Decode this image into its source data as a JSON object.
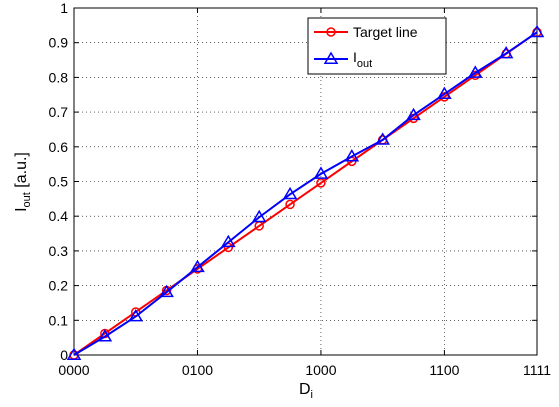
{
  "chart_data": {
    "type": "line",
    "categories": [
      "0000",
      "0001",
      "0010",
      "0011",
      "0100",
      "0101",
      "0110",
      "0111",
      "1000",
      "1001",
      "1010",
      "1011",
      "1100",
      "1101",
      "1110",
      "1111"
    ],
    "tick_labels": [
      "0000",
      "0100",
      "1000",
      "1100",
      "1111"
    ],
    "xlabel": {
      "main": "D",
      "sub": "i"
    },
    "ylabel": {
      "main": "I",
      "sub": "out",
      "suffix": " [a.u.]"
    },
    "ylim": [
      0,
      1
    ],
    "yticks": [
      "0",
      "0.1",
      "0.2",
      "0.3",
      "0.4",
      "0.5",
      "0.6",
      "0.7",
      "0.8",
      "0.9",
      "1"
    ],
    "grid": true,
    "legend_position": "top-right",
    "series": [
      {
        "name": "Target line",
        "color": "#ff0000",
        "marker": "circle",
        "values": [
          0,
          0.062,
          0.124,
          0.186,
          0.248,
          0.31,
          0.372,
          0.434,
          0.496,
          0.558,
          0.62,
          0.682,
          0.744,
          0.806,
          0.868,
          0.93
        ]
      },
      {
        "name": {
          "main": "I",
          "sub": "out"
        },
        "color": "#0000ff",
        "marker": "triangle",
        "values": [
          0,
          0.053,
          0.111,
          0.181,
          0.253,
          0.325,
          0.397,
          0.463,
          0.522,
          0.572,
          0.62,
          0.691,
          0.752,
          0.813,
          0.869,
          0.93
        ]
      }
    ]
  }
}
